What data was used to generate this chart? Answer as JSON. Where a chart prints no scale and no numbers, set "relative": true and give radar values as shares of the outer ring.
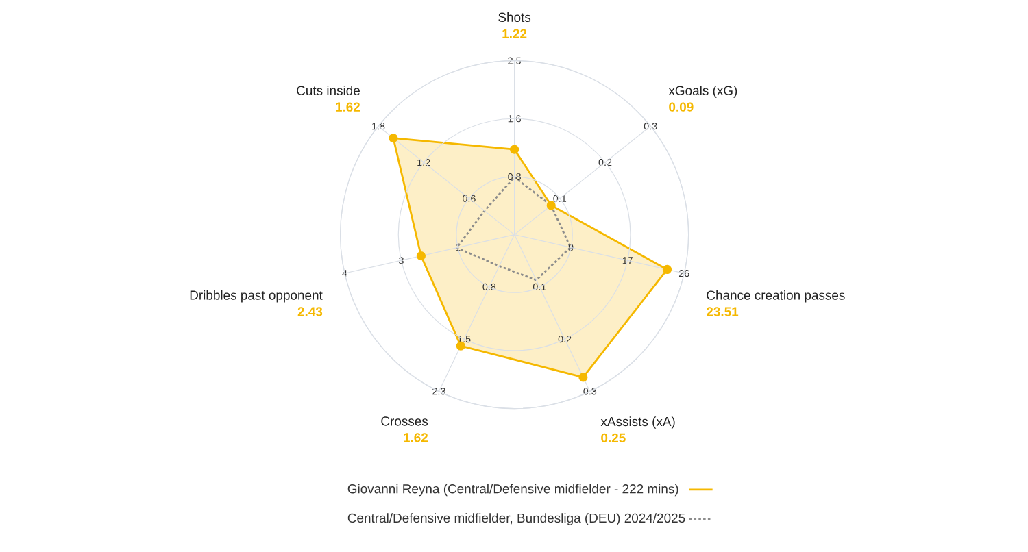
{
  "chart_data": {
    "type": "radar",
    "relative": true,
    "categories": [
      "Shots",
      "xGoals (xG)",
      "Chance creation passes",
      "xAssists (xA)",
      "Crosses",
      "Dribbles past opponent",
      "Cuts inside"
    ],
    "grid": true,
    "legend": "bottom",
    "series": [
      {
        "name": "Giovanni Reyna (Central/Defensive midfielder - 222 mins)",
        "color": "#f5b800",
        "marker": "circle",
        "line_style": "solid",
        "values": [
          0.49,
          0.27,
          0.9,
          0.91,
          0.71,
          0.55,
          0.89
        ]
      },
      {
        "name": "Central/Defensive midfielder, Bundesliga (DEU) 2024/2025",
        "color": "#8c8c8c",
        "line_style": "dotted",
        "values": [
          0.33,
          0.27,
          0.33,
          0.29,
          0.2,
          0.34,
          0.22
        ]
      }
    ],
    "annotations": [
      "1.22",
      "0.8",
      "1.6",
      "2.5",
      "0.09",
      "0.1",
      "0.2",
      "0.3",
      "23.51",
      "9",
      "17",
      "26",
      "0.25",
      "0.1",
      "0.2",
      "0.3",
      "1.62",
      "0.8",
      "1.5",
      "2.3",
      "2.43",
      "1",
      "3",
      "4",
      "1.62",
      "0.6",
      "1.2",
      "1.8"
    ]
  }
}
